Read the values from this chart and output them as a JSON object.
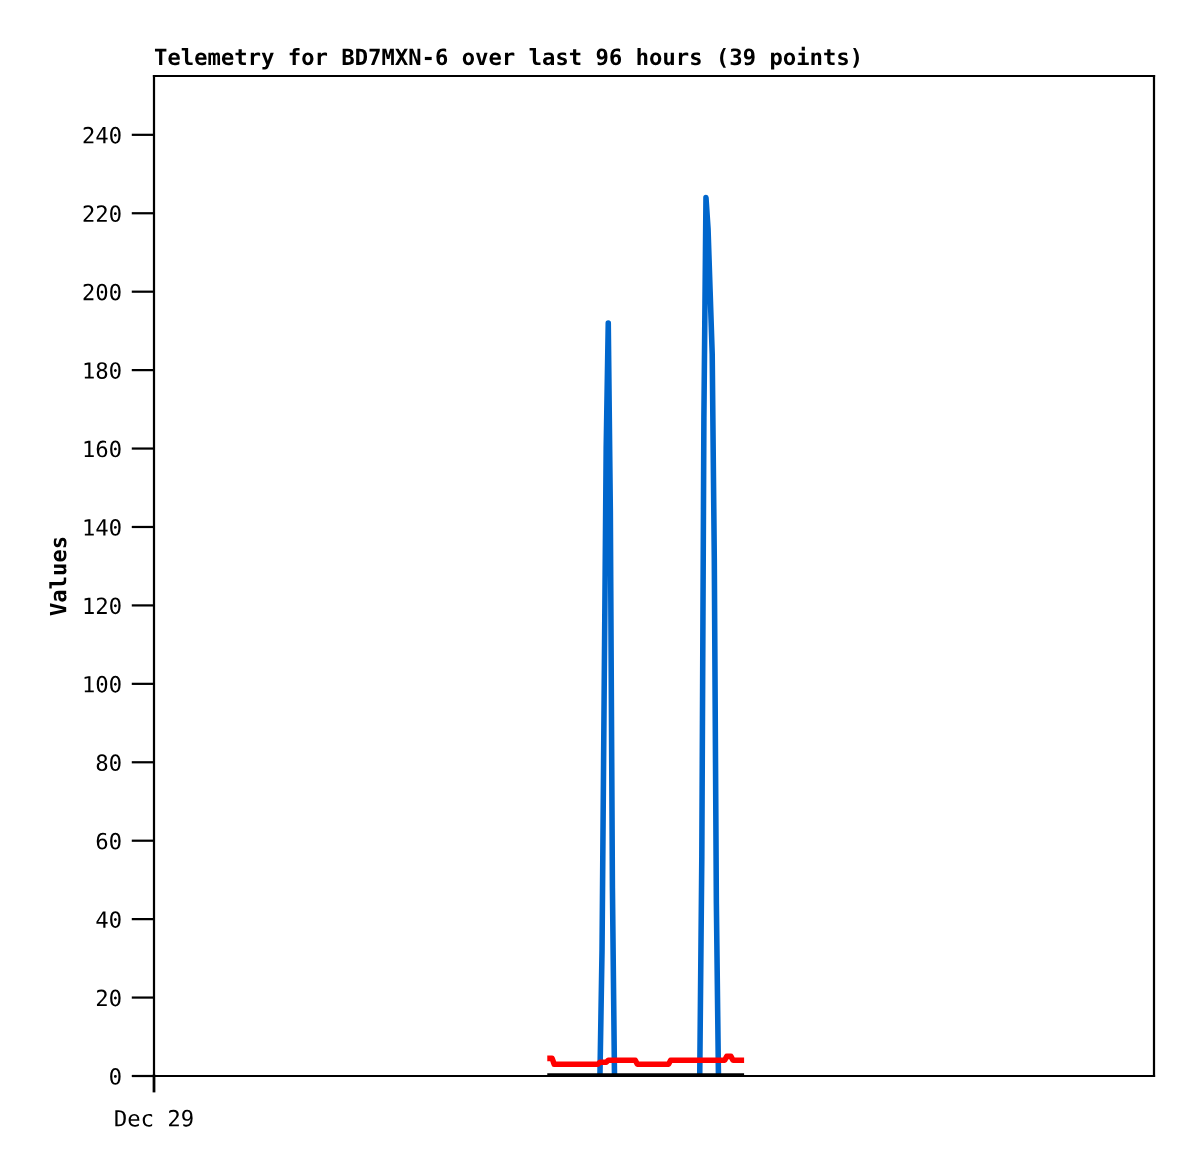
{
  "chart_data": {
    "type": "line",
    "title": "Telemetry for BD7MXN-6 over last 96 hours (39 points)",
    "ylabel": "Values",
    "annotations": [
      "Dec 29"
    ],
    "categories": [
      null,
      null,
      null,
      null,
      null,
      null,
      null,
      null,
      null,
      null,
      null,
      null,
      null,
      null,
      null,
      null,
      null,
      null,
      null,
      null,
      null,
      null,
      null,
      null,
      null,
      null,
      null,
      null,
      null,
      null,
      null,
      null,
      null,
      null,
      null,
      null,
      null,
      null,
      null,
      null,
      null,
      null,
      null,
      null,
      null,
      null,
      null,
      null,
      null,
      null,
      null,
      null,
      null,
      null,
      null,
      null,
      null,
      null,
      null,
      null,
      null,
      null,
      null,
      null,
      null,
      null,
      null,
      null,
      null,
      null,
      null,
      null,
      null,
      null,
      null,
      null,
      null,
      null,
      null,
      null,
      null,
      null,
      null,
      null,
      null,
      null,
      null,
      null,
      null,
      null,
      null,
      null,
      null,
      null,
      null,
      null,
      null,
      null,
      null,
      null,
      null,
      null,
      null,
      null,
      null,
      null,
      null,
      null,
      null,
      null,
      null,
      null,
      null,
      null,
      null,
      null,
      null,
      null,
      null,
      null,
      null,
      null,
      null,
      null,
      null,
      null,
      null,
      null,
      null,
      null,
      null,
      null,
      null,
      null,
      null,
      null,
      null,
      null,
      null,
      null,
      null,
      null,
      null,
      null,
      null,
      null,
      null,
      null,
      null,
      null,
      null,
      null,
      null,
      null,
      null,
      null,
      null,
      null,
      null,
      null,
      null,
      null,
      null,
      null,
      null,
      null,
      null,
      null,
      null,
      null,
      null,
      null,
      null,
      null,
      null,
      null,
      null,
      null,
      null,
      null,
      null,
      null,
      null,
      null,
      null,
      null,
      null,
      null,
      null,
      null,
      null,
      null,
      null,
      null,
      null,
      null,
      null,
      null,
      null,
      null,
      null,
      null,
      null,
      null,
      null,
      null,
      null,
      null,
      null,
      null,
      null,
      null,
      null,
      null,
      null,
      null,
      null,
      null,
      null,
      null,
      null,
      null,
      null,
      null,
      null,
      null,
      null,
      null,
      null,
      null,
      null,
      null,
      null,
      null,
      null,
      null,
      null,
      null,
      null,
      null,
      null,
      null,
      null,
      null,
      null,
      null,
      null,
      null,
      null,
      null,
      null,
      null,
      null,
      null,
      null,
      null,
      null,
      null,
      null,
      null,
      null,
      null,
      null,
      null,
      null,
      null,
      null,
      null,
      null,
      null,
      null,
      null,
      null,
      null,
      null,
      null,
      null,
      null,
      null,
      null,
      null,
      null,
      null,
      null,
      null,
      null,
      null,
      null,
      null,
      null,
      null,
      null,
      null,
      null,
      null,
      null,
      null,
      null,
      null,
      null,
      null,
      null,
      null,
      null,
      null,
      null,
      null,
      null,
      null,
      null,
      null,
      null,
      null,
      null,
      null,
      null,
      null,
      null,
      null,
      null,
      null,
      null,
      null,
      null,
      null,
      null,
      null,
      null,
      null,
      null,
      null,
      null,
      null,
      null,
      null,
      null,
      null,
      null,
      null,
      null,
      null,
      null,
      null,
      null,
      null,
      null,
      null,
      null,
      null,
      null,
      null,
      null,
      null,
      null,
      null,
      null,
      null,
      null,
      null,
      null,
      null,
      null,
      null,
      null,
      null,
      null,
      null,
      null,
      null,
      null,
      null,
      null,
      null,
      null,
      null,
      null,
      null,
      null,
      null,
      null,
      null,
      null,
      null,
      null,
      null,
      null,
      null,
      null,
      null,
      null,
      null,
      null,
      null,
      null,
      null,
      null,
      null,
      null,
      null,
      null,
      null,
      null,
      null,
      null,
      null,
      null,
      null,
      null,
      null,
      null,
      null,
      null,
      null,
      null,
      null,
      null,
      null,
      null,
      null,
      null,
      null,
      null,
      null,
      null,
      null,
      null,
      null,
      null,
      null,
      null,
      null,
      null,
      null,
      null,
      null,
      null,
      null,
      null,
      null,
      null,
      null,
      null,
      null,
      null,
      null,
      null,
      null,
      null,
      null,
      null,
      null,
      null,
      null,
      null,
      null,
      null,
      null,
      null,
      null,
      null,
      null,
      null,
      null,
      null,
      null,
      null,
      null,
      null,
      null,
      null,
      null,
      null,
      null,
      null,
      null,
      null,
      null,
      null,
      null,
      null,
      null
    ],
    "ylim": [
      0,
      255
    ],
    "yticks": [
      0,
      20,
      40,
      60,
      80,
      100,
      120,
      140,
      160,
      180,
      200,
      220,
      240
    ],
    "grid": false,
    "marker": "none",
    "line_style": "solid",
    "series": [
      {
        "color": "#0066cc",
        "values": [
          null,
          null,
          null,
          null,
          null,
          null,
          null,
          null,
          null,
          null,
          null,
          null,
          null,
          null,
          null,
          null,
          null,
          null,
          null,
          null,
          null,
          null,
          null,
          null,
          null,
          null,
          null,
          null,
          null,
          null,
          null,
          null,
          null,
          null,
          null,
          null,
          null,
          null,
          null,
          null,
          null,
          null,
          null,
          null,
          null,
          null,
          null,
          null,
          null,
          null,
          null,
          null,
          null,
          null,
          null,
          null,
          null,
          null,
          null,
          null,
          null,
          null,
          null,
          null,
          null,
          null,
          null,
          null,
          null,
          null,
          null,
          null,
          null,
          null,
          null,
          null,
          null,
          null,
          null,
          null,
          null,
          null,
          null,
          null,
          null,
          null,
          null,
          null,
          null,
          null,
          null,
          null,
          null,
          null,
          null,
          null,
          null,
          null,
          null,
          null,
          null,
          null,
          null,
          null,
          null,
          null,
          null,
          null,
          null,
          null,
          null,
          null,
          null,
          null,
          null,
          null,
          null,
          null,
          null,
          null,
          null,
          null,
          null,
          null,
          null,
          null,
          null,
          null,
          null,
          null,
          null,
          null,
          null,
          null,
          null,
          null,
          null,
          null,
          null,
          null,
          null,
          null,
          null,
          null,
          null,
          null,
          null,
          null,
          null,
          null,
          null,
          null,
          null,
          null,
          null,
          null,
          null,
          null,
          null,
          null,
          null,
          null,
          null,
          null,
          null,
          null,
          null,
          null,
          null,
          null,
          null,
          null,
          null,
          null,
          null,
          null,
          null,
          null,
          null,
          null,
          null,
          null,
          null,
          null,
          null,
          null,
          null,
          null,
          null,
          null,
          null,
          null,
          null,
          null,
          null,
          null,
          null,
          null,
          null,
          null,
          null,
          null,
          null,
          null,
          null,
          null,
          null,
          null,
          null,
          null,
          null,
          null,
          null,
          null,
          0,
          32,
          96,
          160,
          192,
          144,
          48,
          0,
          null,
          null,
          null,
          null,
          null,
          null,
          null,
          null,
          null,
          null,
          null,
          null,
          null,
          null,
          null,
          null,
          null,
          null,
          null,
          null,
          null,
          null,
          null,
          null,
          null,
          null,
          null,
          null,
          null,
          null,
          null,
          null,
          null,
          null,
          null,
          null,
          null,
          null,
          null,
          null,
          0,
          56,
          168,
          224,
          216,
          200,
          184,
          132,
          44,
          0,
          null,
          null,
          null,
          null,
          null,
          null,
          null,
          null,
          null,
          null,
          null,
          null,
          null,
          null,
          null,
          null,
          null,
          null,
          null,
          null,
          null,
          null,
          null,
          null,
          null,
          null,
          null,
          null,
          null,
          null,
          null,
          null,
          null,
          null,
          null,
          null,
          null,
          null,
          null,
          null,
          null,
          null,
          null,
          null,
          null,
          null,
          null,
          null,
          null,
          null,
          null,
          null,
          null,
          null,
          null,
          null,
          null,
          null,
          null,
          null,
          null,
          null,
          null,
          null,
          null,
          null,
          null,
          null,
          null,
          null,
          null,
          null,
          null,
          null,
          null,
          null,
          null,
          null,
          null,
          null,
          null,
          null,
          null,
          null,
          null,
          null,
          null,
          null,
          null,
          null,
          null,
          null,
          null,
          null,
          null,
          null,
          null,
          null,
          null,
          null,
          null,
          null,
          null,
          null,
          null,
          null,
          null,
          null,
          null,
          null,
          null,
          null,
          null,
          null,
          null,
          null,
          null,
          null,
          null,
          null,
          null,
          null,
          null,
          null,
          null,
          null,
          null,
          null,
          null,
          null,
          null,
          null,
          null,
          null,
          null,
          null,
          null,
          null,
          null,
          null,
          null,
          null,
          null,
          null,
          null,
          null,
          null,
          null,
          null,
          null,
          null,
          null,
          null,
          null,
          null,
          null,
          null,
          null,
          null,
          null,
          null,
          null,
          null,
          null,
          null,
          null,
          null,
          null,
          null,
          null,
          null,
          null,
          null,
          null,
          null,
          null,
          null,
          null,
          null,
          null,
          null,
          null,
          null,
          null,
          null,
          null,
          null,
          null,
          null,
          null,
          null,
          null,
          null,
          null,
          null,
          null,
          null,
          null,
          null,
          null,
          null,
          null,
          null,
          null,
          null,
          null,
          null,
          null,
          null
        ]
      },
      {
        "color": "#ff0000",
        "values": [
          null,
          null,
          null,
          null,
          null,
          null,
          null,
          null,
          null,
          null,
          null,
          null,
          null,
          null,
          null,
          null,
          null,
          null,
          null,
          null,
          null,
          null,
          null,
          null,
          null,
          null,
          null,
          null,
          null,
          null,
          null,
          null,
          null,
          null,
          null,
          null,
          null,
          null,
          null,
          null,
          null,
          null,
          null,
          null,
          null,
          null,
          null,
          null,
          null,
          null,
          null,
          null,
          null,
          null,
          null,
          null,
          null,
          null,
          null,
          null,
          null,
          null,
          null,
          null,
          null,
          null,
          null,
          null,
          null,
          null,
          null,
          null,
          null,
          null,
          null,
          null,
          null,
          null,
          null,
          null,
          null,
          null,
          null,
          null,
          null,
          null,
          null,
          null,
          null,
          null,
          null,
          null,
          null,
          null,
          null,
          null,
          null,
          null,
          null,
          null,
          null,
          null,
          null,
          null,
          null,
          null,
          null,
          null,
          null,
          null,
          null,
          null,
          null,
          null,
          null,
          null,
          null,
          null,
          null,
          null,
          null,
          null,
          null,
          null,
          null,
          null,
          null,
          null,
          null,
          null,
          null,
          null,
          null,
          null,
          null,
          null,
          null,
          null,
          null,
          null,
          null,
          null,
          null,
          null,
          null,
          null,
          null,
          null,
          null,
          null,
          null,
          null,
          null,
          null,
          null,
          null,
          null,
          null,
          null,
          null,
          null,
          null,
          null,
          null,
          null,
          null,
          null,
          null,
          null,
          null,
          null,
          null,
          null,
          null,
          null,
          null,
          null,
          null,
          null,
          null,
          null,
          null,
          null,
          null,
          null,
          null,
          null,
          null,
          null,
          null,
          4.5,
          4.5,
          3,
          3,
          3,
          3,
          3,
          3,
          3,
          3,
          3,
          3,
          3,
          3,
          3,
          3,
          3,
          3,
          3,
          3,
          3,
          3,
          3,
          3,
          3.5,
          3.5,
          3.5,
          3.5,
          4,
          4,
          4,
          4,
          4,
          4,
          4,
          4,
          4,
          4,
          4,
          4,
          4,
          4,
          3,
          3,
          3,
          3,
          3,
          3,
          3,
          3,
          3,
          3,
          3,
          3,
          3,
          3,
          3,
          3,
          4,
          4,
          4,
          4,
          4,
          4,
          4,
          4,
          4,
          4,
          4,
          4,
          4,
          4,
          4,
          4,
          4,
          4,
          4,
          4,
          4,
          4,
          4,
          4,
          4,
          4,
          4,
          5,
          5,
          5,
          4,
          4,
          4,
          4,
          4,
          null,
          null,
          null,
          null,
          null,
          null,
          null,
          null,
          null,
          null,
          null,
          null,
          null,
          null,
          null,
          null,
          null,
          null,
          null,
          null,
          null,
          null,
          null,
          null,
          null,
          null,
          null,
          null,
          null,
          null,
          null,
          null,
          null,
          null,
          null,
          null,
          null,
          null,
          null,
          null,
          null,
          null,
          null,
          null,
          null,
          null,
          null,
          null,
          null,
          null,
          null,
          null,
          null,
          null,
          null,
          null,
          null,
          null,
          null,
          null,
          null,
          null,
          null,
          null,
          null,
          null,
          null,
          null,
          null,
          null,
          null,
          null,
          null,
          null,
          null,
          null,
          null,
          null,
          null,
          null,
          null,
          null,
          null,
          null,
          null,
          null,
          null,
          null,
          null,
          null,
          null,
          null,
          null,
          null,
          null,
          null,
          null,
          null,
          null,
          null,
          null,
          null,
          null,
          null,
          null,
          null,
          null,
          null,
          null,
          null,
          null,
          null,
          null,
          null,
          null,
          null,
          null,
          null,
          null,
          null,
          null,
          null,
          null,
          null,
          null,
          null,
          null,
          null,
          null,
          null,
          null,
          null,
          null,
          null,
          null,
          null,
          null,
          null,
          null,
          null,
          null,
          null,
          null,
          null,
          null,
          null,
          null,
          null,
          null,
          null,
          null,
          null,
          null,
          null,
          null,
          null,
          null,
          null,
          null,
          null,
          null,
          null,
          null,
          null,
          null,
          null,
          null,
          null,
          null,
          null,
          null,
          null,
          null,
          null,
          null,
          null,
          null,
          null,
          null,
          null,
          null,
          null,
          null,
          null,
          null,
          null,
          null,
          null,
          null,
          null,
          null,
          null,
          null,
          null,
          null,
          null,
          null,
          null
        ]
      },
      {
        "color": "#000000",
        "values": [
          null,
          null,
          null,
          null,
          null,
          null,
          null,
          null,
          null,
          null,
          null,
          null,
          null,
          null,
          null,
          null,
          null,
          null,
          null,
          null,
          null,
          null,
          null,
          null,
          null,
          null,
          null,
          null,
          null,
          null,
          null,
          null,
          null,
          null,
          null,
          null,
          null,
          null,
          null,
          null,
          null,
          null,
          null,
          null,
          null,
          null,
          null,
          null,
          null,
          null,
          null,
          null,
          null,
          null,
          null,
          null,
          null,
          null,
          null,
          null,
          null,
          null,
          null,
          null,
          null,
          null,
          null,
          null,
          null,
          null,
          null,
          null,
          null,
          null,
          null,
          null,
          null,
          null,
          null,
          null,
          null,
          null,
          null,
          null,
          null,
          null,
          null,
          null,
          null,
          null,
          null,
          null,
          null,
          null,
          null,
          null,
          null,
          null,
          null,
          null,
          null,
          null,
          null,
          null,
          null,
          null,
          null,
          null,
          null,
          null,
          null,
          null,
          null,
          null,
          null,
          null,
          null,
          null,
          null,
          null,
          null,
          null,
          null,
          null,
          null,
          null,
          null,
          null,
          null,
          null,
          null,
          null,
          null,
          null,
          null,
          null,
          null,
          null,
          null,
          null,
          null,
          null,
          null,
          null,
          null,
          null,
          null,
          null,
          null,
          null,
          null,
          null,
          null,
          null,
          null,
          null,
          null,
          null,
          null,
          null,
          null,
          null,
          null,
          null,
          null,
          null,
          null,
          null,
          null,
          null,
          null,
          null,
          null,
          null,
          null,
          null,
          null,
          null,
          null,
          null,
          null,
          null,
          null,
          null,
          null,
          null,
          null,
          null,
          null,
          null,
          0,
          0,
          0,
          0,
          0,
          0,
          0,
          0,
          0,
          0,
          0,
          0,
          0,
          0,
          0,
          0,
          0,
          0,
          0,
          0,
          0,
          0,
          0,
          0,
          0,
          0,
          0,
          0,
          0,
          0,
          0,
          0,
          0,
          0,
          0,
          0,
          0,
          0,
          0,
          0,
          0,
          0,
          0,
          0,
          0,
          0,
          0,
          0,
          0,
          0,
          0,
          0,
          0,
          0,
          0,
          0,
          0,
          0,
          0,
          0,
          0,
          0,
          0,
          0,
          0,
          0,
          0,
          0,
          0,
          0,
          0,
          0,
          0,
          0,
          0,
          0,
          0,
          0,
          0,
          0,
          0,
          0,
          0,
          0,
          0,
          0,
          0,
          0,
          0,
          0,
          0,
          0,
          0,
          null,
          null,
          null,
          null,
          null,
          null,
          null,
          null,
          null,
          null,
          null,
          null,
          null,
          null,
          null,
          null,
          null,
          null,
          null,
          null,
          null,
          null,
          null,
          null,
          null,
          null,
          null,
          null,
          null,
          null,
          null,
          null,
          null,
          null,
          null,
          null,
          null,
          null,
          null,
          null,
          null,
          null,
          null,
          null,
          null,
          null,
          null,
          null,
          null,
          null,
          null,
          null,
          null,
          null,
          null,
          null,
          null,
          null,
          null,
          null,
          null,
          null,
          null,
          null,
          null,
          null,
          null,
          null,
          null,
          null,
          null,
          null,
          null,
          null,
          null,
          null,
          null,
          null,
          null,
          null,
          null,
          null,
          null,
          null,
          null,
          null,
          null,
          null,
          null,
          null,
          null,
          null,
          null,
          null,
          null,
          null,
          null,
          null,
          null,
          null,
          null,
          null,
          null,
          null,
          null,
          null,
          null,
          null,
          null,
          null,
          null,
          null,
          null,
          null,
          null,
          null,
          null,
          null,
          null,
          null,
          null,
          null,
          null,
          null,
          null,
          null,
          null,
          null,
          null,
          null,
          null,
          null,
          null,
          null,
          null,
          null,
          null,
          null,
          null,
          null,
          null,
          null,
          null,
          null,
          null,
          null,
          null,
          null,
          null,
          null,
          null,
          null,
          null,
          null,
          null,
          null,
          null,
          null,
          null,
          null,
          null,
          null,
          null,
          null,
          null,
          null,
          null,
          null,
          null,
          null,
          null,
          null,
          null,
          null,
          null,
          null,
          null,
          null,
          null,
          null,
          null,
          null,
          null,
          null,
          null,
          null,
          null,
          null,
          null,
          null,
          null,
          null,
          null,
          null,
          null,
          null,
          null,
          null
        ]
      }
    ]
  }
}
